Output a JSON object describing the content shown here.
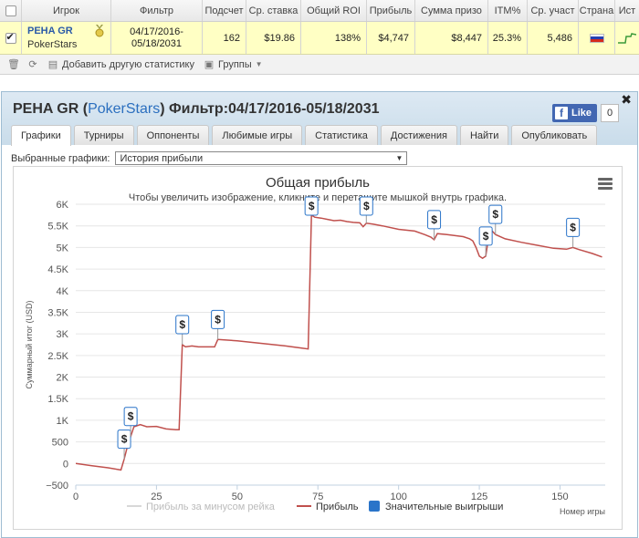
{
  "table": {
    "headers": [
      "Игрок",
      "Фильтр",
      "Подсчет",
      "Ср. ставка",
      "Общий ROI",
      "Прибыль",
      "Сумма призо",
      "ITM%",
      "Ср. участ",
      "Страна",
      "Ист"
    ],
    "row": {
      "player_name": "PEHA GR",
      "player_site": "PokerStars",
      "filter_line1": "04/17/2016-",
      "filter_line2": "05/18/2031",
      "count": "162",
      "avg_stake": "$19.86",
      "roi": "138%",
      "profit": "$4,747",
      "prize_sum": "$8,447",
      "itm": "25.3%",
      "avg_field": "5,486"
    },
    "flag_colors": [
      "#ffffff",
      "#2541b2",
      "#d52b1e"
    ]
  },
  "toolbar": {
    "add_stats_label": "Добавить другую статистику",
    "groups_label": "Группы"
  },
  "panel": {
    "title_prefix": "PEHA GR (",
    "title_site": "PokerStars",
    "title_suffix": ") Фильтр:04/17/2016-05/18/2031",
    "like_label": "Like",
    "like_count": "0",
    "tabs": [
      "Графики",
      "Турниры",
      "Оппоненты",
      "Любимые игры",
      "Статистика",
      "Достижения",
      "Найти",
      "Опубликовать"
    ],
    "active_tab": "Графики",
    "selector_label": "Выбранные графики:",
    "selector_value": "История прибыли"
  },
  "chart_data": {
    "type": "line",
    "title": "Общая прибыль",
    "subtitle": "Чтобы увеличить изображение, кликните и перетащите мышкой внутрь графика.",
    "xlabel": "Номер игры",
    "ylabel": "Суммарный итог (USD)",
    "xlim": [
      0,
      164
    ],
    "ylim": [
      -500,
      6000
    ],
    "x_ticks": [
      "0",
      "25",
      "50",
      "75",
      "100",
      "125",
      "150"
    ],
    "y_ticks": [
      "−500",
      "0",
      "500",
      "1K",
      "1.5K",
      "2K",
      "2.5K",
      "3K",
      "3.5K",
      "4K",
      "4.5K",
      "5K",
      "5.5K",
      "6K"
    ],
    "grid": true,
    "legend_position": "bottom",
    "legend": [
      "Прибыль за минусом рейка",
      "Прибыль",
      "Значительные выигрыши"
    ],
    "colors": {
      "rake_line": "#d8d8d8",
      "profit_line": "#c0504d",
      "big_wins": "#2a74c9"
    },
    "series": [
      {
        "name": "Прибыль",
        "x": [
          0,
          5,
          10,
          14,
          15,
          16,
          18,
          20,
          22,
          25,
          28,
          31,
          32,
          33,
          34,
          36,
          38,
          40,
          42,
          43,
          44,
          46,
          50,
          55,
          60,
          65,
          70,
          72,
          73,
          74,
          76,
          78,
          80,
          82,
          84,
          86,
          88,
          89,
          90,
          92,
          95,
          100,
          105,
          108,
          110,
          111,
          112,
          115,
          120,
          122,
          123,
          124,
          125,
          126,
          127,
          128,
          129,
          130,
          133,
          138,
          143,
          148,
          152,
          154,
          156,
          160,
          163
        ],
        "y": [
          0,
          -50,
          -100,
          -150,
          100,
          400,
          850,
          900,
          850,
          860,
          800,
          780,
          780,
          2750,
          2700,
          2720,
          2700,
          2700,
          2700,
          2700,
          2870,
          2860,
          2840,
          2800,
          2760,
          2720,
          2670,
          2650,
          5750,
          5700,
          5680,
          5650,
          5620,
          5630,
          5600,
          5580,
          5570,
          5480,
          5560,
          5540,
          5500,
          5420,
          5380,
          5300,
          5240,
          5180,
          5320,
          5300,
          5250,
          5200,
          5150,
          5000,
          4800,
          4750,
          4800,
          5300,
          5380,
          5300,
          5200,
          5120,
          5050,
          4980,
          4960,
          5000,
          4950,
          4860,
          4780
        ]
      }
    ],
    "big_wins_x": [
      15,
      17,
      33,
      44,
      73,
      90,
      111,
      127,
      130,
      154
    ]
  }
}
